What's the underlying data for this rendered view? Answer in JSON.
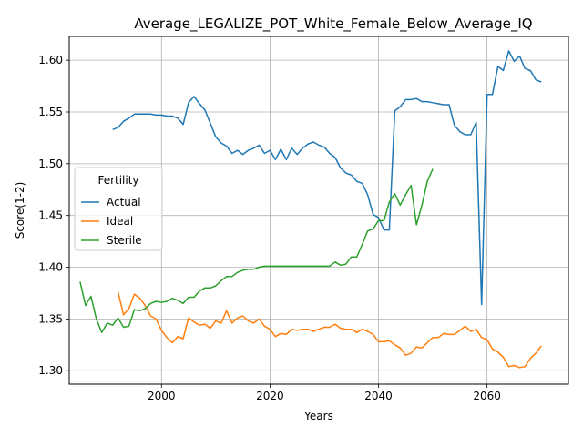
{
  "chart_data": {
    "type": "line",
    "title": "Average_LEGALIZE_POT_White_Female_Below_Average_IQ",
    "xlabel": "Years",
    "ylabel": "Score(1-2)",
    "xlim": [
      1983,
      2075
    ],
    "ylim": [
      1.287,
      1.623
    ],
    "xticks": [
      2000,
      2020,
      2040,
      2060
    ],
    "yticks": [
      1.3,
      1.35,
      1.4,
      1.45,
      1.5,
      1.55,
      1.6
    ],
    "grid": true,
    "legend": {
      "title": "Fertility",
      "position": "center-left"
    },
    "series": [
      {
        "name": "Actual",
        "color": "#1f77b4",
        "points": [
          [
            1991,
            1.533
          ],
          [
            1992,
            1.535
          ],
          [
            1993,
            1.541
          ],
          [
            1994,
            1.544
          ],
          [
            1995,
            1.548
          ],
          [
            1996,
            1.548
          ],
          [
            1997,
            1.548
          ],
          [
            1998,
            1.548
          ],
          [
            1999,
            1.547
          ],
          [
            2000,
            1.547
          ],
          [
            2001,
            1.546
          ],
          [
            2002,
            1.546
          ],
          [
            2003,
            1.544
          ],
          [
            2004,
            1.538
          ],
          [
            2005,
            1.559
          ],
          [
            2006,
            1.565
          ],
          [
            2007,
            1.558
          ],
          [
            2008,
            1.552
          ],
          [
            2009,
            1.539
          ],
          [
            2010,
            1.526
          ],
          [
            2011,
            1.52
          ],
          [
            2012,
            1.517
          ],
          [
            2013,
            1.51
          ],
          [
            2014,
            1.513
          ],
          [
            2015,
            1.509
          ],
          [
            2016,
            1.513
          ],
          [
            2017,
            1.515
          ],
          [
            2018,
            1.518
          ],
          [
            2019,
            1.51
          ],
          [
            2020,
            1.513
          ],
          [
            2021,
            1.504
          ],
          [
            2022,
            1.514
          ],
          [
            2023,
            1.504
          ],
          [
            2024,
            1.515
          ],
          [
            2025,
            1.509
          ],
          [
            2026,
            1.515
          ],
          [
            2027,
            1.519
          ],
          [
            2028,
            1.521
          ],
          [
            2029,
            1.518
          ],
          [
            2030,
            1.516
          ],
          [
            2031,
            1.51
          ],
          [
            2032,
            1.506
          ],
          [
            2033,
            1.496
          ],
          [
            2034,
            1.491
          ],
          [
            2035,
            1.489
          ],
          [
            2036,
            1.483
          ],
          [
            2037,
            1.481
          ],
          [
            2038,
            1.47
          ],
          [
            2039,
            1.451
          ],
          [
            2040,
            1.448
          ],
          [
            2041,
            1.436
          ],
          [
            2042,
            1.436
          ],
          [
            2043,
            1.551
          ],
          [
            2044,
            1.555
          ],
          [
            2045,
            1.562
          ],
          [
            2046,
            1.562
          ],
          [
            2047,
            1.563
          ],
          [
            2048,
            1.56
          ],
          [
            2049,
            1.56
          ],
          [
            2050,
            1.559
          ],
          [
            2051,
            1.558
          ],
          [
            2052,
            1.557
          ],
          [
            2053,
            1.557
          ],
          [
            2054,
            1.537
          ],
          [
            2055,
            1.531
          ],
          [
            2056,
            1.528
          ],
          [
            2057,
            1.528
          ],
          [
            2058,
            1.54
          ],
          [
            2059,
            1.364
          ],
          [
            2060,
            1.567
          ],
          [
            2061,
            1.567
          ],
          [
            2062,
            1.594
          ],
          [
            2063,
            1.59
          ],
          [
            2064,
            1.609
          ],
          [
            2065,
            1.599
          ],
          [
            2066,
            1.604
          ],
          [
            2067,
            1.592
          ],
          [
            2068,
            1.59
          ],
          [
            2069,
            1.581
          ],
          [
            2070,
            1.579
          ]
        ]
      },
      {
        "name": "Ideal",
        "color": "#ff7f0e",
        "points": [
          [
            1992,
            1.376
          ],
          [
            1993,
            1.354
          ],
          [
            1994,
            1.36
          ],
          [
            1995,
            1.374
          ],
          [
            1996,
            1.37
          ],
          [
            1997,
            1.363
          ],
          [
            1998,
            1.353
          ],
          [
            1999,
            1.35
          ],
          [
            2000,
            1.339
          ],
          [
            2001,
            1.332
          ],
          [
            2002,
            1.327
          ],
          [
            2003,
            1.333
          ],
          [
            2004,
            1.331
          ],
          [
            2005,
            1.351
          ],
          [
            2006,
            1.347
          ],
          [
            2007,
            1.344
          ],
          [
            2008,
            1.345
          ],
          [
            2009,
            1.341
          ],
          [
            2010,
            1.348
          ],
          [
            2011,
            1.346
          ],
          [
            2012,
            1.358
          ],
          [
            2013,
            1.346
          ],
          [
            2014,
            1.351
          ],
          [
            2015,
            1.353
          ],
          [
            2016,
            1.348
          ],
          [
            2017,
            1.346
          ],
          [
            2018,
            1.35
          ],
          [
            2019,
            1.343
          ],
          [
            2020,
            1.34
          ],
          [
            2021,
            1.333
          ],
          [
            2022,
            1.336
          ],
          [
            2023,
            1.335
          ],
          [
            2024,
            1.34
          ],
          [
            2025,
            1.339
          ],
          [
            2026,
            1.34
          ],
          [
            2027,
            1.34
          ],
          [
            2028,
            1.338
          ],
          [
            2029,
            1.34
          ],
          [
            2030,
            1.342
          ],
          [
            2031,
            1.342
          ],
          [
            2032,
            1.345
          ],
          [
            2033,
            1.341
          ],
          [
            2034,
            1.34
          ],
          [
            2035,
            1.34
          ],
          [
            2036,
            1.337
          ],
          [
            2037,
            1.34
          ],
          [
            2038,
            1.338
          ],
          [
            2039,
            1.335
          ],
          [
            2040,
            1.328
          ],
          [
            2041,
            1.328
          ],
          [
            2042,
            1.329
          ],
          [
            2043,
            1.325
          ],
          [
            2044,
            1.322
          ],
          [
            2045,
            1.315
          ],
          [
            2046,
            1.317
          ],
          [
            2047,
            1.323
          ],
          [
            2048,
            1.322
          ],
          [
            2049,
            1.327
          ],
          [
            2050,
            1.332
          ],
          [
            2051,
            1.332
          ],
          [
            2052,
            1.336
          ],
          [
            2053,
            1.335
          ],
          [
            2054,
            1.335
          ],
          [
            2055,
            1.339
          ],
          [
            2056,
            1.343
          ],
          [
            2057,
            1.338
          ],
          [
            2058,
            1.34
          ],
          [
            2059,
            1.332
          ],
          [
            2060,
            1.33
          ],
          [
            2061,
            1.321
          ],
          [
            2062,
            1.318
          ],
          [
            2063,
            1.313
          ],
          [
            2064,
            1.304
          ],
          [
            2065,
            1.305
          ],
          [
            2066,
            1.303
          ],
          [
            2067,
            1.304
          ],
          [
            2068,
            1.312
          ],
          [
            2069,
            1.317
          ],
          [
            2070,
            1.324
          ]
        ]
      },
      {
        "name": "Sterile",
        "color": "#2ca02c",
        "points": [
          [
            1985,
            1.386
          ],
          [
            1986,
            1.363
          ],
          [
            1987,
            1.372
          ],
          [
            1988,
            1.35
          ],
          [
            1989,
            1.337
          ],
          [
            1990,
            1.346
          ],
          [
            1991,
            1.344
          ],
          [
            1992,
            1.351
          ],
          [
            1993,
            1.342
          ],
          [
            1994,
            1.343
          ],
          [
            1995,
            1.359
          ],
          [
            1996,
            1.358
          ],
          [
            1997,
            1.36
          ],
          [
            1998,
            1.365
          ],
          [
            1999,
            1.367
          ],
          [
            2000,
            1.366
          ],
          [
            2001,
            1.367
          ],
          [
            2002,
            1.37
          ],
          [
            2003,
            1.368
          ],
          [
            2004,
            1.365
          ],
          [
            2005,
            1.371
          ],
          [
            2006,
            1.371
          ],
          [
            2007,
            1.377
          ],
          [
            2008,
            1.38
          ],
          [
            2009,
            1.38
          ],
          [
            2010,
            1.382
          ],
          [
            2011,
            1.387
          ],
          [
            2012,
            1.391
          ],
          [
            2013,
            1.391
          ],
          [
            2014,
            1.395
          ],
          [
            2015,
            1.397
          ],
          [
            2016,
            1.398
          ],
          [
            2017,
            1.398
          ],
          [
            2018,
            1.4
          ],
          [
            2019,
            1.401
          ],
          [
            2020,
            1.401
          ],
          [
            2021,
            1.401
          ],
          [
            2022,
            1.401
          ],
          [
            2023,
            1.401
          ],
          [
            2024,
            1.401
          ],
          [
            2025,
            1.401
          ],
          [
            2026,
            1.401
          ],
          [
            2027,
            1.401
          ],
          [
            2028,
            1.401
          ],
          [
            2029,
            1.401
          ],
          [
            2030,
            1.401
          ],
          [
            2031,
            1.401
          ],
          [
            2032,
            1.405
          ],
          [
            2033,
            1.402
          ],
          [
            2034,
            1.403
          ],
          [
            2035,
            1.41
          ],
          [
            2036,
            1.41
          ],
          [
            2037,
            1.422
          ],
          [
            2038,
            1.435
          ],
          [
            2039,
            1.437
          ],
          [
            2040,
            1.445
          ],
          [
            2041,
            1.445
          ],
          [
            2042,
            1.463
          ],
          [
            2043,
            1.471
          ],
          [
            2044,
            1.46
          ],
          [
            2045,
            1.47
          ],
          [
            2046,
            1.479
          ],
          [
            2047,
            1.441
          ],
          [
            2048,
            1.46
          ],
          [
            2049,
            1.483
          ],
          [
            2050,
            1.495
          ]
        ]
      }
    ]
  }
}
